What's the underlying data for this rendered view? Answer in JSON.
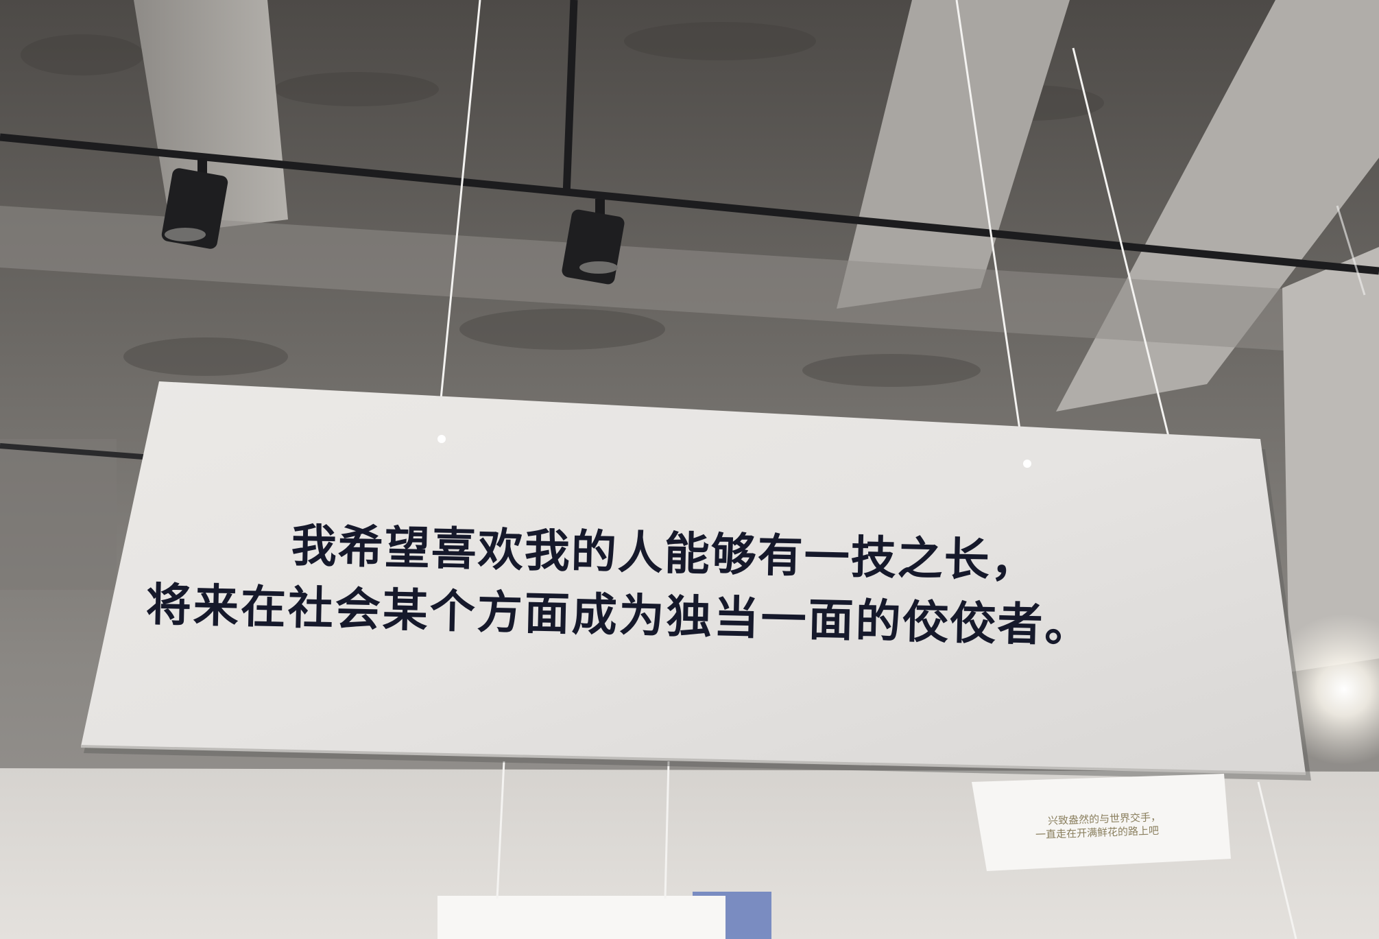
{
  "photo": {
    "main_sign": {
      "line_1": "我希望喜欢我的人能够有一技之长，",
      "line_2": "将来在社会某个方面成为独当一面的佼佼者。"
    },
    "small_card": {
      "line_1": "兴致盎然的与世界交手，",
      "line_2": "一直走在开满鲜花的路上吧"
    }
  }
}
